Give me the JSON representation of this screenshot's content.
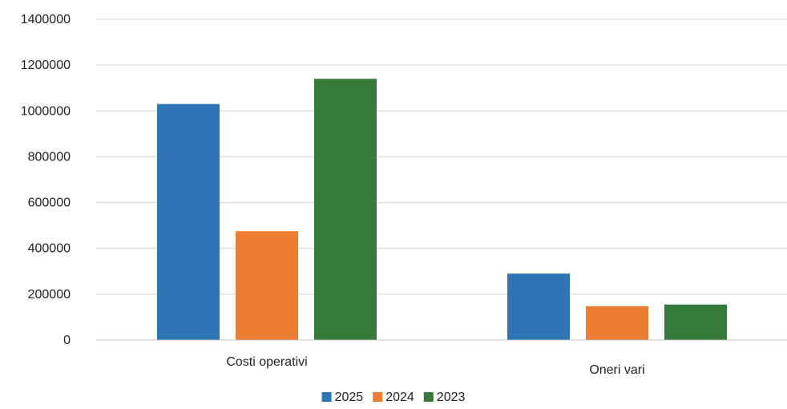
{
  "chart_data": {
    "type": "bar",
    "title": "",
    "xlabel": "",
    "ylabel": "",
    "categories": [
      "Costi operativi",
      "Oneri vari"
    ],
    "series": [
      {
        "name": "2025",
        "values": [
          1030000,
          290000
        ],
        "color": "#2e75b6"
      },
      {
        "name": "2024",
        "values": [
          475000,
          148000
        ],
        "color": "#ed7d31"
      },
      {
        "name": "2023",
        "values": [
          1140000,
          155000
        ],
        "color": "#357a38"
      }
    ],
    "y_ticks": [
      "0",
      "200000",
      "400000",
      "600000",
      "800000",
      "1000000",
      "1200000",
      "1400000"
    ],
    "ylim": [
      0,
      1400000
    ],
    "grid": true,
    "legend_position": "bottom"
  }
}
